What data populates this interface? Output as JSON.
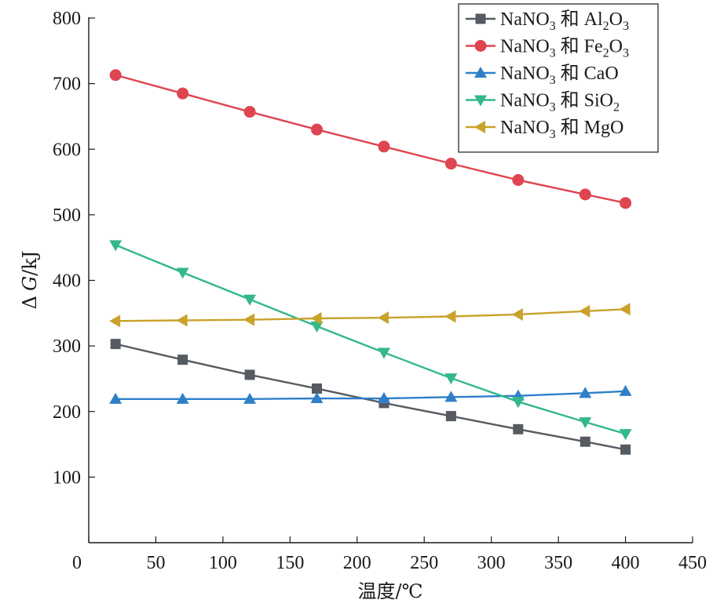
{
  "chart_data": {
    "type": "line",
    "xlabel": "温度/℃",
    "ylabel_symbol": "Δ",
    "ylabel_var": "G",
    "ylabel_unit": "/kJ",
    "xlim": [
      0,
      450
    ],
    "ylim": [
      0,
      800
    ],
    "xticks": [
      0,
      50,
      100,
      150,
      200,
      250,
      300,
      350,
      400,
      450
    ],
    "yticks": [
      100,
      200,
      300,
      400,
      500,
      600,
      700,
      800
    ],
    "grid": false,
    "legend_position": "top-right",
    "x": [
      20,
      70,
      120,
      170,
      220,
      270,
      320,
      370,
      400
    ],
    "series": [
      {
        "name": "NaNO₃ 和 Al₂O₃",
        "legend_parts": [
          [
            "NaNO",
            ""
          ],
          [
            "3",
            "sub"
          ],
          [
            " 和 Al",
            ""
          ],
          [
            "2",
            "sub"
          ],
          [
            "O",
            ""
          ],
          [
            "3",
            "sub"
          ]
        ],
        "marker": "square",
        "color": "#555b61",
        "values": [
          303,
          279,
          256,
          235,
          213,
          193,
          173,
          154,
          142
        ]
      },
      {
        "name": "NaNO₃ 和 Fe₂O₃",
        "legend_parts": [
          [
            "NaNO",
            ""
          ],
          [
            "3",
            "sub"
          ],
          [
            " 和 Fe",
            ""
          ],
          [
            "2",
            "sub"
          ],
          [
            "O",
            ""
          ],
          [
            "3",
            "sub"
          ]
        ],
        "marker": "circle",
        "color": "#de4550",
        "values": [
          713,
          685,
          657,
          630,
          604,
          578,
          553,
          531,
          518
        ]
      },
      {
        "name": "NaNO₃ 和 CaO",
        "legend_parts": [
          [
            "NaNO",
            ""
          ],
          [
            "3",
            "sub"
          ],
          [
            " 和 CaO",
            ""
          ]
        ],
        "marker": "triangle-up",
        "color": "#2f7fc8",
        "values": [
          219,
          219,
          219,
          220,
          220,
          222,
          224,
          228,
          231
        ]
      },
      {
        "name": "NaNO₃ 和 SiO₂",
        "legend_parts": [
          [
            "NaNO",
            ""
          ],
          [
            "3",
            "sub"
          ],
          [
            " 和 SiO",
            ""
          ],
          [
            "2",
            "sub"
          ]
        ],
        "marker": "triangle-down",
        "color": "#34b88a",
        "values": [
          454,
          412,
          371,
          330,
          290,
          251,
          215,
          184,
          166
        ]
      },
      {
        "name": "NaNO₃ 和 MgO",
        "legend_parts": [
          [
            "NaNO",
            ""
          ],
          [
            "3",
            "sub"
          ],
          [
            " 和 MgO",
            ""
          ]
        ],
        "marker": "triangle-left",
        "color": "#c9a22b",
        "values": [
          338,
          339,
          340,
          342,
          343,
          345,
          348,
          353,
          356
        ]
      }
    ]
  }
}
